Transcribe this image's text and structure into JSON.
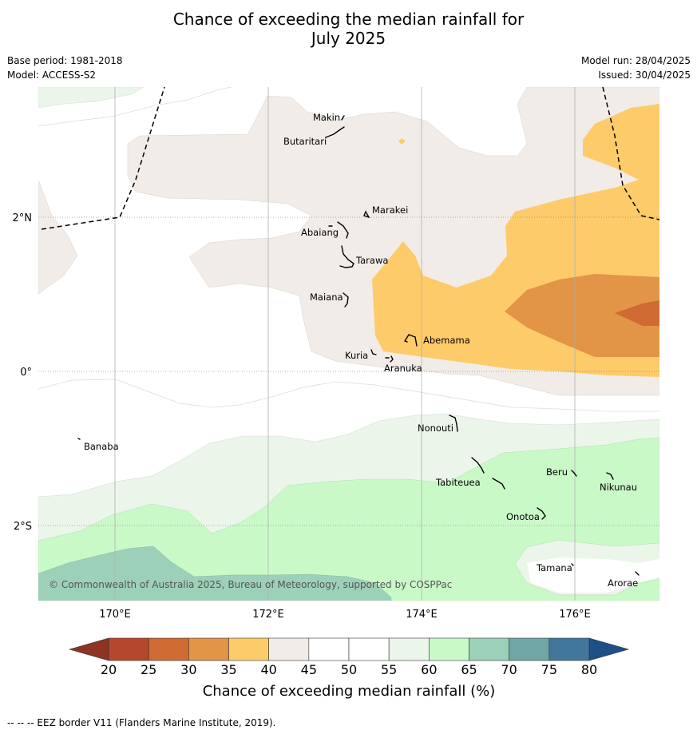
{
  "title_line1": "Chance of exceeding the median rainfall for",
  "title_line2": "July 2025",
  "base_period": "Base period: 1981-2018",
  "model": "Model: ACCESS-S2",
  "model_run": "Model run: 28/04/2025",
  "issued": "Issued: 30/04/2025",
  "copyright": "© Commonwealth of Australia 2025, Bureau of Meteorology, supported by COSPPac",
  "footer_note": "--  --  -- EEZ border V11 (Flanders Marine Institute, 2019).",
  "axes": {
    "x_ticks": [
      "170°E",
      "172°E",
      "174°E",
      "176°E"
    ],
    "y_ticks": [
      "2°N",
      "0°",
      "2°S"
    ]
  },
  "colorbar": {
    "label": "Chance of exceeding median rainfall (%)",
    "ticks": [
      "20",
      "25",
      "30",
      "35",
      "40",
      "45",
      "50",
      "55",
      "60",
      "65",
      "70",
      "75",
      "80"
    ],
    "colors": [
      "#b5482a",
      "#cf6a33",
      "#e29447",
      "#fdcb69",
      "#f1ece7",
      "#ffffff",
      "#ffffff",
      "#ebf5ea",
      "#caf9c8",
      "#9dd0b8",
      "#70a6a6",
      "#40779b"
    ],
    "low_color": "#8f3424",
    "high_color": "#1f4f87"
  },
  "islands": [
    "Makin",
    "Butaritari",
    "Marakei",
    "Abaiang",
    "Tarawa",
    "Maiana",
    "Abemama",
    "Kuria",
    "Aranuka",
    "Nonouti",
    "Banaba",
    "Tabiteuea",
    "Beru",
    "Nikunau",
    "Onotoa",
    "Tamana",
    "Arorae"
  ]
}
